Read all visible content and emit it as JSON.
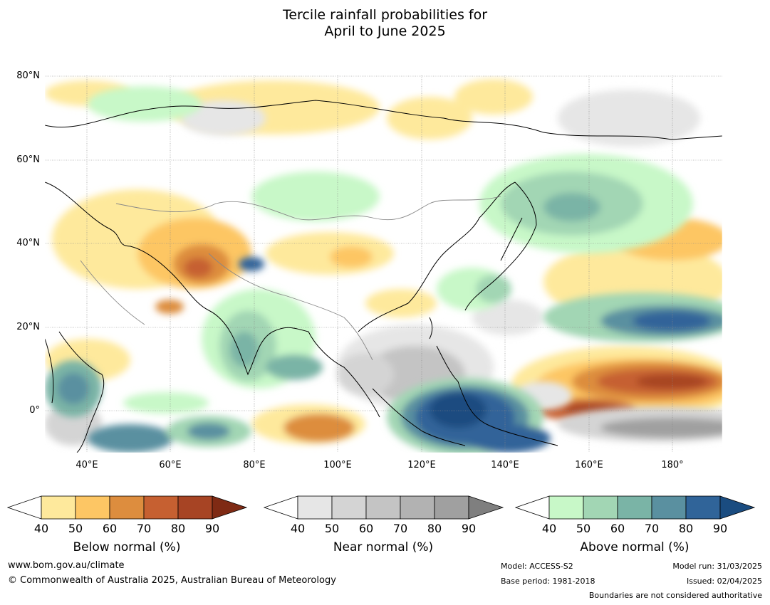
{
  "title": {
    "line1": "Tercile rainfall probabilities for",
    "line2": "April to June 2025"
  },
  "map": {
    "lat_labels": [
      "80°N",
      "60°N",
      "40°N",
      "20°N",
      "0°"
    ],
    "lon_labels": [
      "40°E",
      "60°E",
      "80°E",
      "100°E",
      "120°E",
      "140°E",
      "160°E",
      "180°"
    ],
    "extent": {
      "lon_min": 30,
      "lon_max": 192,
      "lat_min": -10,
      "lat_max": 81
    }
  },
  "colorbars": [
    {
      "label": "Below normal (%)",
      "ticks": [
        "40",
        "50",
        "60",
        "70",
        "80",
        "90"
      ],
      "colors": [
        "#ffffff",
        "#fee99c",
        "#fdc664",
        "#dd8d3e",
        "#c66031",
        "#a74424",
        "#7f2a14"
      ]
    },
    {
      "label": "Near normal (%)",
      "ticks": [
        "40",
        "50",
        "60",
        "70",
        "80",
        "90"
      ],
      "colors": [
        "#ffffff",
        "#e6e6e6",
        "#d4d4d4",
        "#c4c4c4",
        "#b2b2b2",
        "#a0a0a0",
        "#7f7f7f"
      ]
    },
    {
      "label": "Above normal (%)",
      "ticks": [
        "40",
        "50",
        "60",
        "70",
        "80",
        "90"
      ],
      "colors": [
        "#ffffff",
        "#c8f8c8",
        "#a2d6b4",
        "#7ab4a6",
        "#5a90a0",
        "#306499",
        "#1a4c80"
      ]
    }
  ],
  "footer": {
    "website": "www.bom.gov.au/climate",
    "copyright": "© Commonwealth of Australia 2025, Australian Bureau of Meteorology",
    "model": "Model: ACCESS-S2",
    "base_period": "Base period: 1981-2018",
    "model_run": "Model run: 31/03/2025",
    "issued": "Issued: 02/04/2025",
    "disclaimer": "Boundaries are not considered authoritative"
  }
}
